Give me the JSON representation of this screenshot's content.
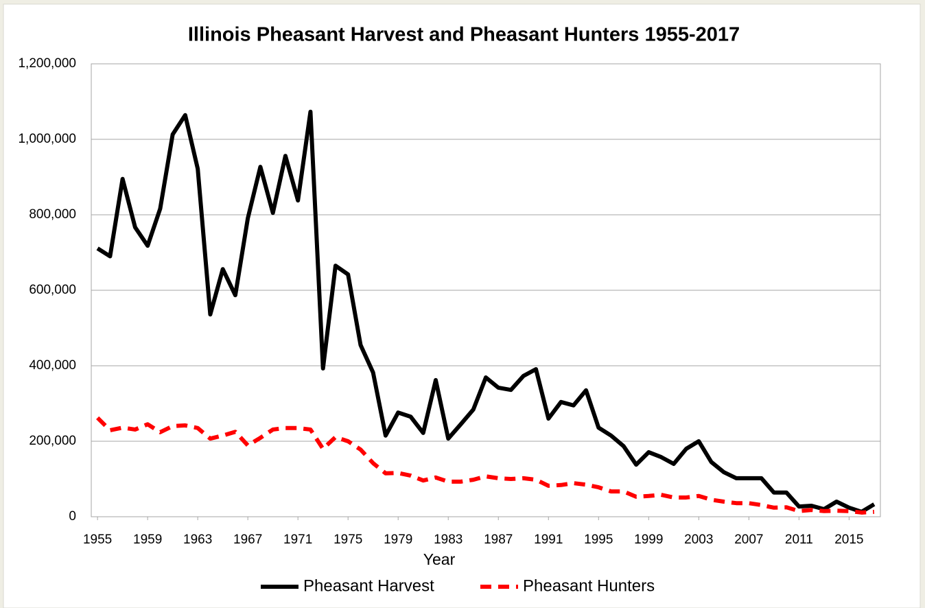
{
  "chart_data": {
    "type": "line",
    "title": "Illinois Pheasant Harvest and Pheasant Hunters 1955-2017",
    "x_label": "Year",
    "x": [
      1955,
      1956,
      1957,
      1958,
      1959,
      1960,
      1961,
      1962,
      1963,
      1964,
      1965,
      1966,
      1967,
      1968,
      1969,
      1970,
      1971,
      1972,
      1973,
      1974,
      1975,
      1976,
      1977,
      1978,
      1979,
      1980,
      1981,
      1982,
      1983,
      1984,
      1985,
      1986,
      1987,
      1988,
      1989,
      1990,
      1991,
      1992,
      1993,
      1994,
      1995,
      1996,
      1997,
      1998,
      1999,
      2000,
      2001,
      2002,
      2003,
      2004,
      2005,
      2006,
      2007,
      2008,
      2009,
      2010,
      2011,
      2012,
      2013,
      2014,
      2015,
      2016,
      2017
    ],
    "series": [
      {
        "name": "Pheasant Harvest",
        "color": "#000000",
        "line_style": "solid",
        "values": [
          711000,
          690000,
          895000,
          767000,
          718000,
          816000,
          1013000,
          1064000,
          922000,
          536000,
          656000,
          587000,
          791000,
          927000,
          805000,
          956000,
          838000,
          1073000,
          393000,
          665000,
          642000,
          455000,
          382000,
          215000,
          276000,
          265000,
          222000,
          362000,
          207000,
          245000,
          284000,
          369000,
          342000,
          336000,
          373000,
          391000,
          260000,
          304000,
          295000,
          335000,
          236000,
          215000,
          187000,
          138000,
          171000,
          158000,
          140000,
          180000,
          200000,
          145000,
          118000,
          102000,
          102000,
          102000,
          64000,
          64000,
          27000,
          29000,
          20000,
          40000,
          24000,
          13000,
          33000
        ]
      },
      {
        "name": "Pheasant Hunters",
        "color": "#ff0000",
        "line_style": "dashed",
        "values": [
          262000,
          229000,
          236000,
          231000,
          245000,
          224000,
          240000,
          242000,
          235000,
          207000,
          215000,
          225000,
          189000,
          209000,
          231000,
          235000,
          235000,
          231000,
          180000,
          211000,
          200000,
          178000,
          142000,
          115000,
          116000,
          109000,
          96000,
          104000,
          93000,
          93000,
          98000,
          107000,
          102000,
          100000,
          102000,
          98000,
          82000,
          84000,
          89000,
          85000,
          78000,
          67000,
          67000,
          53000,
          55000,
          58000,
          51000,
          51000,
          55000,
          45000,
          40000,
          36000,
          36000,
          31000,
          24000,
          25000,
          15000,
          18000,
          15000,
          16000,
          15000,
          11000,
          13000
        ]
      }
    ],
    "xlim": [
      1954.5,
      2017.5
    ],
    "xticks": [
      1955,
      1959,
      1963,
      1967,
      1971,
      1975,
      1979,
      1983,
      1987,
      1991,
      1995,
      1999,
      2003,
      2007,
      2011,
      2015
    ],
    "ylim": [
      0,
      1200000
    ],
    "yticks": [
      0,
      {
        "value": 200000,
        "label": "200,000"
      },
      {
        "value": 400000,
        "label": "400,000"
      },
      {
        "value": 600000,
        "label": "600,000"
      },
      {
        "value": 800000,
        "label": "800,000"
      },
      {
        "value": 1000000,
        "label": "1,000,000"
      },
      {
        "value": 1200000,
        "label": "1,200,000"
      }
    ],
    "grid": true,
    "legend": "bottom"
  }
}
